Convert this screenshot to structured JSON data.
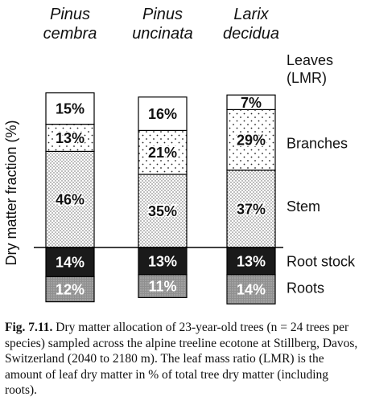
{
  "chart_data": {
    "type": "bar",
    "stacked": true,
    "ylabel": "Dry matter fraction (%)",
    "categories": [
      "Pinus cembra",
      "Pinus uncinata",
      "Larix decidua"
    ],
    "category_lines": [
      [
        "Pinus",
        "cembra"
      ],
      [
        "Pinus",
        "uncinata"
      ],
      [
        "Larix",
        "decidua"
      ]
    ],
    "series": [
      {
        "name": "Leaves (LMR)",
        "label_lines": [
          "Leaves",
          "(LMR)"
        ],
        "values": [
          15,
          16,
          7
        ],
        "above_ground": true,
        "fill": "#ffffff",
        "pattern": "none"
      },
      {
        "name": "Branches",
        "label_lines": [
          "Branches"
        ],
        "values": [
          13,
          21,
          29
        ],
        "above_ground": true,
        "fill": "#ffffff",
        "pattern": "sparse-dots"
      },
      {
        "name": "Stem",
        "label_lines": [
          "Stem"
        ],
        "values": [
          46,
          35,
          37
        ],
        "above_ground": true,
        "fill": "#ffffff",
        "pattern": "dense-dots"
      },
      {
        "name": "Root stock",
        "label_lines": [
          "Root stock"
        ],
        "values": [
          14,
          13,
          13
        ],
        "above_ground": false,
        "fill": "#1a1a1a",
        "pattern": "solid"
      },
      {
        "name": "Roots",
        "label_lines": [
          "Roots"
        ],
        "values": [
          12,
          11,
          14
        ],
        "above_ground": false,
        "fill": "#9a9a9a",
        "pattern": "gray-stipple"
      }
    ],
    "value_suffix": "%",
    "ground_line": "between Stem and Root stock",
    "grid": false,
    "legend": "right"
  },
  "caption": {
    "label": "Fig. 7.11.",
    "text": "Dry matter allocation of 23-year-old trees (n = 24 trees per species) sampled across the alpine treeline ecotone at Stillberg, Davos, Switzerland (2040 to 2180 m). The leaf mass ratio (LMR) is the amount of leaf dry matter in % of total tree dry matter (including roots)."
  }
}
